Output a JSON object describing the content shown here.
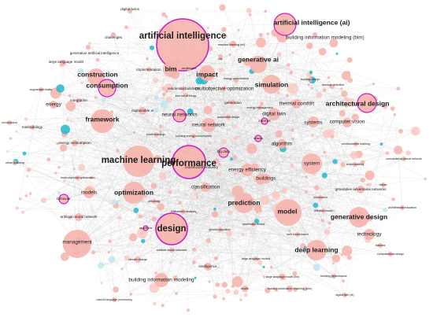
{
  "diagram": {
    "type": "keyword-co-occurrence-network",
    "colors": {
      "node_fill": "#f6b3ac",
      "node_fill_alt": "#f9c9c3",
      "node_highlight_stroke": "#c81ec8",
      "node_cyan": "#22b8cc",
      "node_light_cyan": "#bfe6ee",
      "edge": "#c8c8c8",
      "label": "#1a1a1a"
    },
    "nodes": [
      {
        "label": "artificial intelligence",
        "size": "xl",
        "highlight": true
      },
      {
        "label": "artificial intelligence (ai)",
        "size": "l",
        "highlight": true
      },
      {
        "label": "building information modeling (bim)",
        "size": "m",
        "highlight": false
      },
      {
        "label": "digital twins",
        "size": "s",
        "highlight": false
      },
      {
        "label": "challenges",
        "size": "s",
        "highlight": false
      },
      {
        "label": "generative artificial intelligence",
        "size": "s",
        "highlight": false
      },
      {
        "label": "large language model",
        "size": "s",
        "highlight": false
      },
      {
        "label": "machine learning (ml)",
        "size": "xs",
        "highlight": false
      },
      {
        "label": "city",
        "size": "xs",
        "highlight": false
      },
      {
        "label": "generative ai",
        "size": "l",
        "highlight": false
      },
      {
        "label": "construction",
        "size": "l",
        "highlight": false
      },
      {
        "label": "bim",
        "size": "l",
        "highlight": false
      },
      {
        "label": "implementation",
        "size": "s",
        "highlight": false
      },
      {
        "label": "architecture",
        "size": "xs",
        "highlight": false
      },
      {
        "label": "impact",
        "size": "l",
        "highlight": false
      },
      {
        "label": "energy performance",
        "size": "xs",
        "highlight": false
      },
      {
        "label": "simulation",
        "size": "l",
        "highlight": false
      },
      {
        "label": "building design",
        "size": "xs",
        "highlight": false
      },
      {
        "label": "damage detection",
        "size": "xs",
        "highlight": false
      },
      {
        "label": "consumption",
        "size": "l",
        "highlight": true
      },
      {
        "label": "augmented reality",
        "size": "xs",
        "highlight": false
      },
      {
        "label": "residential buildings",
        "size": "s",
        "highlight": false
      },
      {
        "label": "multiobjective optimization",
        "size": "m",
        "highlight": false
      },
      {
        "label": "internet of things",
        "size": "xs",
        "highlight": false
      },
      {
        "label": "architectural design",
        "size": "l",
        "highlight": true
      },
      {
        "label": "energy",
        "size": "m",
        "highlight": false
      },
      {
        "label": "integration",
        "size": "s",
        "highlight": false
      },
      {
        "label": "generation",
        "size": "s",
        "highlight": false
      },
      {
        "label": "energy management",
        "size": "xs",
        "highlight": false
      },
      {
        "label": "thermal comfort",
        "size": "m",
        "highlight": false
      },
      {
        "label": "framework",
        "size": "l",
        "highlight": false
      },
      {
        "label": "explainable ai",
        "size": "s",
        "highlight": false
      },
      {
        "label": "neural networks",
        "size": "m",
        "highlight": true
      },
      {
        "label": "parametric design",
        "size": "xs",
        "highlight": false
      },
      {
        "label": "internet",
        "size": "s",
        "highlight": true
      },
      {
        "label": "digital twin",
        "size": "m",
        "highlight": false
      },
      {
        "label": "systems",
        "size": "m",
        "highlight": false
      },
      {
        "label": "computer vision",
        "size": "m",
        "highlight": false
      },
      {
        "label": "neural network",
        "size": "m",
        "highlight": false
      },
      {
        "label": "smart buildings",
        "size": "xs",
        "highlight": false
      },
      {
        "label": "building energy consumption",
        "size": "xs",
        "highlight": false
      },
      {
        "label": "environment",
        "size": "xs",
        "highlight": false
      },
      {
        "label": "methodology",
        "size": "s",
        "highlight": false
      },
      {
        "label": "energy consumption",
        "size": "s",
        "highlight": false
      },
      {
        "label": "reinforcement learning",
        "size": "xs",
        "highlight": false
      },
      {
        "label": "algorithm",
        "size": "m",
        "highlight": false
      },
      {
        "label": "network",
        "size": "xs",
        "highlight": true
      },
      {
        "label": "construction industry",
        "size": "s",
        "highlight": false
      },
      {
        "label": "machine learning",
        "size": "xl",
        "highlight": false
      },
      {
        "label": "performance",
        "size": "xl",
        "highlight": true
      },
      {
        "label": "big data",
        "size": "s",
        "highlight": true
      },
      {
        "label": "energy efficiency",
        "size": "m",
        "highlight": false
      },
      {
        "label": "system",
        "size": "m",
        "highlight": false
      },
      {
        "label": "smart building",
        "size": "xs",
        "highlight": false
      },
      {
        "label": "convolutional neural network",
        "size": "xs",
        "highlight": false
      },
      {
        "label": "urban planning",
        "size": "xs",
        "highlight": false
      },
      {
        "label": "multi-objective optimization",
        "size": "xs",
        "highlight": false
      },
      {
        "label": "behavior",
        "size": "s",
        "highlight": true
      },
      {
        "label": "models",
        "size": "m",
        "highlight": false
      },
      {
        "label": "optimization",
        "size": "l",
        "highlight": false
      },
      {
        "label": "classification",
        "size": "m",
        "highlight": false
      },
      {
        "label": "buildings",
        "size": "m",
        "highlight": false
      },
      {
        "label": "efficiency",
        "size": "xs",
        "highlight": false
      },
      {
        "label": "generative adversarial networks",
        "size": "s",
        "highlight": false
      },
      {
        "label": "information",
        "size": "xs",
        "highlight": false
      },
      {
        "label": "future",
        "size": "xs",
        "highlight": false
      },
      {
        "label": "architectural education",
        "size": "xs",
        "highlight": false
      },
      {
        "label": "bibliometric analysis",
        "size": "xs",
        "highlight": false
      },
      {
        "label": "prediction",
        "size": "l",
        "highlight": false
      },
      {
        "label": "model",
        "size": "l",
        "highlight": false
      },
      {
        "label": "diffusion model",
        "size": "xs",
        "highlight": false
      },
      {
        "label": "generative design",
        "size": "l",
        "highlight": false
      },
      {
        "label": "artificial neural network",
        "size": "s",
        "highlight": false
      },
      {
        "label": "genetic algorithm",
        "size": "xs",
        "highlight": false
      },
      {
        "label": "systematic review",
        "size": "xs",
        "highlight": false
      },
      {
        "label": "algorithms",
        "size": "xs",
        "highlight": true
      },
      {
        "label": "design",
        "size": "xl",
        "highlight": true
      },
      {
        "label": "management",
        "size": "m",
        "highlight": false
      },
      {
        "label": "built environment",
        "size": "xs",
        "highlight": false
      },
      {
        "label": "technology",
        "size": "m",
        "highlight": false
      },
      {
        "label": "robotics",
        "size": "xs",
        "highlight": false
      },
      {
        "label": "artificial neural networks",
        "size": "xs",
        "highlight": false
      },
      {
        "label": "large language models",
        "size": "xs",
        "highlight": false
      },
      {
        "label": "deep learning",
        "size": "l",
        "highlight": false
      },
      {
        "label": "computational design",
        "size": "xs",
        "highlight": false
      },
      {
        "label": "climate change",
        "size": "xs",
        "highlight": false
      },
      {
        "label": "intelligence",
        "size": "s",
        "highlight": false
      },
      {
        "label": "large language model (llm)",
        "size": "xs",
        "highlight": false
      },
      {
        "label": "building performance",
        "size": "xs",
        "highlight": false
      },
      {
        "label": "building information modeling",
        "size": "m",
        "highlight": false
      },
      {
        "label": "health",
        "size": "xs",
        "highlight": false
      },
      {
        "label": "building information modeling (bim)",
        "size": "xs",
        "highlight": false
      },
      {
        "label": "digital twin (dt)",
        "size": "xs",
        "highlight": false
      },
      {
        "label": "natural language processing",
        "size": "xs",
        "highlight": false
      }
    ]
  }
}
